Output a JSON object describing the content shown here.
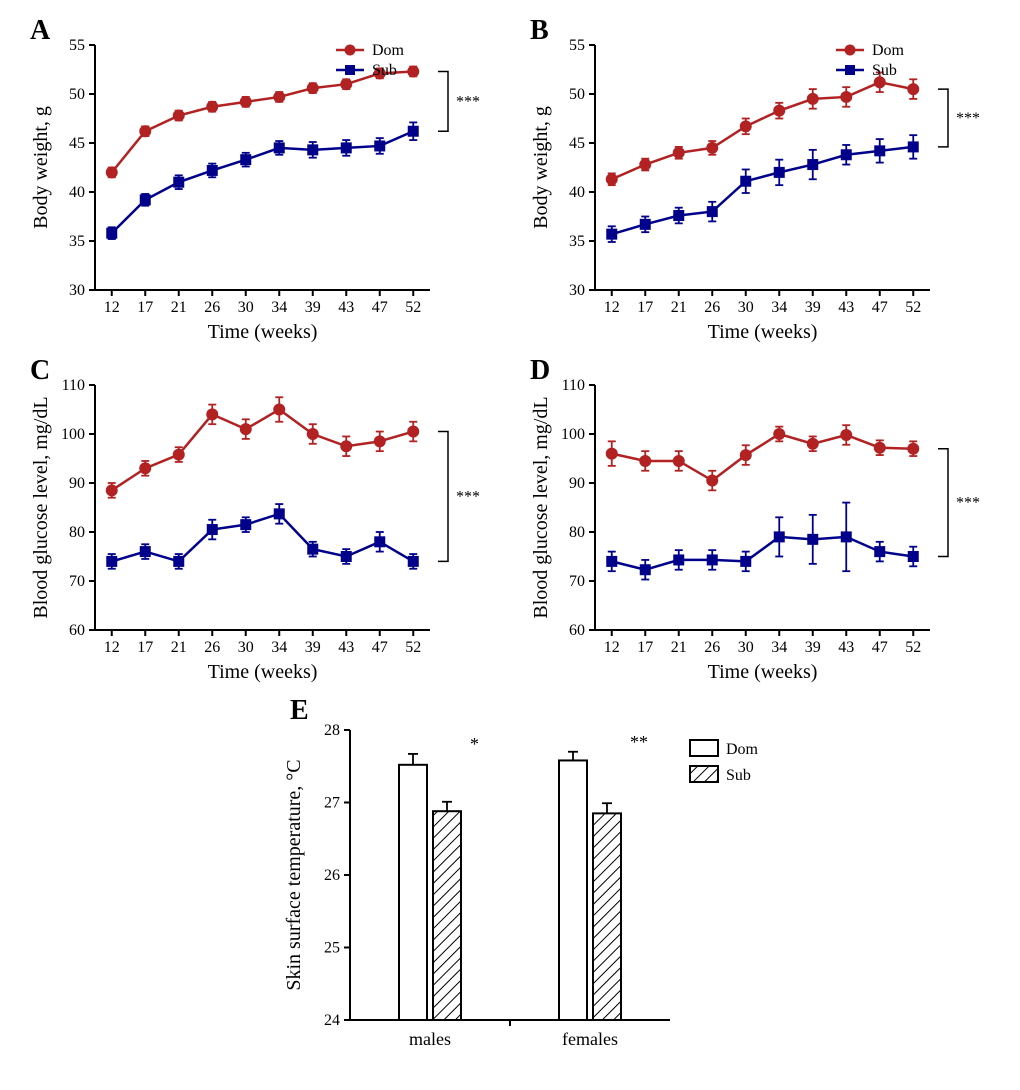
{
  "colors": {
    "dom": "#b22222",
    "sub": "#00008b",
    "axis": "#000000",
    "bg": "#ffffff",
    "bar_dom_fill": "#ffffff",
    "bar_sub_hatch": "#000000"
  },
  "typography": {
    "panel_label_fontsize": 28,
    "axis_label_fontsize": 20,
    "tick_fontsize": 16,
    "legend_fontsize": 16
  },
  "time_x": [
    12,
    17,
    21,
    26,
    30,
    34,
    39,
    43,
    47,
    52
  ],
  "panelA": {
    "label": "A",
    "type": "line",
    "ylabel": "Body weight, g",
    "xlabel": "Time (weeks)",
    "ylim": [
      30,
      55
    ],
    "ytick_step": 5,
    "legend": [
      {
        "label": "Dom",
        "marker": "circle",
        "color": "dom"
      },
      {
        "label": "Sub",
        "marker": "square",
        "color": "sub"
      }
    ],
    "sig": "***",
    "series": {
      "Dom": {
        "y": [
          42.0,
          46.2,
          47.8,
          48.7,
          49.2,
          49.7,
          50.6,
          51.0,
          52.1,
          52.3
        ],
        "err": [
          0.5,
          0.5,
          0.5,
          0.5,
          0.5,
          0.5,
          0.5,
          0.5,
          0.5,
          0.5
        ]
      },
      "Sub": {
        "y": [
          35.8,
          39.2,
          41.0,
          42.2,
          43.3,
          44.5,
          44.3,
          44.5,
          44.7,
          46.2
        ],
        "err": [
          0.6,
          0.6,
          0.7,
          0.7,
          0.7,
          0.7,
          0.8,
          0.8,
          0.8,
          0.9
        ]
      }
    }
  },
  "panelB": {
    "label": "B",
    "type": "line",
    "ylabel": "Body weight, g",
    "xlabel": "Time (weeks)",
    "ylim": [
      30,
      55
    ],
    "ytick_step": 5,
    "legend": [
      {
        "label": "Dom",
        "marker": "circle",
        "color": "dom"
      },
      {
        "label": "Sub",
        "marker": "square",
        "color": "sub"
      }
    ],
    "sig": "***",
    "series": {
      "Dom": {
        "y": [
          41.3,
          42.8,
          44.0,
          44.5,
          46.7,
          48.3,
          49.5,
          49.7,
          51.2,
          50.5
        ],
        "err": [
          0.6,
          0.6,
          0.6,
          0.7,
          0.8,
          0.8,
          1.0,
          1.0,
          1.0,
          1.0
        ]
      },
      "Sub": {
        "y": [
          35.7,
          36.7,
          37.6,
          38.0,
          41.1,
          42.0,
          42.8,
          43.8,
          44.2,
          44.6
        ],
        "err": [
          0.8,
          0.8,
          0.8,
          1.0,
          1.2,
          1.3,
          1.5,
          1.0,
          1.2,
          1.2
        ]
      }
    }
  },
  "panelC": {
    "label": "C",
    "type": "line",
    "ylabel": "Blood glucose level, mg/dL",
    "xlabel": "Time (weeks)",
    "ylim": [
      60,
      110
    ],
    "ytick_step": 10,
    "sig": "***",
    "series": {
      "Dom": {
        "y": [
          88.5,
          93.0,
          95.8,
          104.0,
          101.0,
          105.0,
          100.0,
          97.5,
          98.5,
          100.5
        ],
        "err": [
          1.5,
          1.5,
          1.5,
          2.0,
          2.0,
          2.5,
          2.0,
          2.0,
          2.0,
          2.0
        ]
      },
      "Sub": {
        "y": [
          74.0,
          76.0,
          74.0,
          80.5,
          81.5,
          83.7,
          76.5,
          75.0,
          78.0,
          74.0
        ],
        "err": [
          1.5,
          1.5,
          1.5,
          2.0,
          1.5,
          2.0,
          1.5,
          1.5,
          2.0,
          1.5
        ]
      }
    }
  },
  "panelD": {
    "label": "D",
    "type": "line",
    "ylabel": "Blood glucose level, mg/dL",
    "xlabel": "Time (weeks)",
    "ylim": [
      60,
      110
    ],
    "ytick_step": 10,
    "sig": "***",
    "series": {
      "Dom": {
        "y": [
          96.0,
          94.5,
          94.5,
          90.5,
          95.7,
          100.0,
          98.0,
          99.8,
          97.2,
          97.0
        ],
        "err": [
          2.5,
          2.0,
          2.0,
          2.0,
          2.0,
          1.5,
          1.5,
          2.0,
          1.5,
          1.5
        ]
      },
      "Sub": {
        "y": [
          74.0,
          72.3,
          74.3,
          74.3,
          74.0,
          79.0,
          78.5,
          79.0,
          76.0,
          75.0
        ],
        "err": [
          2.0,
          2.0,
          2.0,
          2.0,
          2.0,
          4.0,
          5.0,
          7.0,
          2.0,
          2.0
        ]
      }
    }
  },
  "panelE": {
    "label": "E",
    "type": "bar",
    "ylabel": "Skin surface temperature, °C",
    "ylim": [
      24,
      28
    ],
    "ytick_step": 1,
    "groups": [
      "males",
      "females"
    ],
    "legend": [
      {
        "label": "Dom",
        "fill": "open"
      },
      {
        "label": "Sub",
        "fill": "hatched"
      }
    ],
    "bars": {
      "males": {
        "Dom": {
          "y": 27.52,
          "err": 0.15,
          "sig": "*"
        },
        "Sub": {
          "y": 26.88,
          "err": 0.13
        }
      },
      "females": {
        "Dom": {
          "y": 27.58,
          "err": 0.12,
          "sig": "**"
        },
        "Sub": {
          "y": 26.85,
          "err": 0.14
        }
      }
    },
    "bar_width": 0.35
  }
}
